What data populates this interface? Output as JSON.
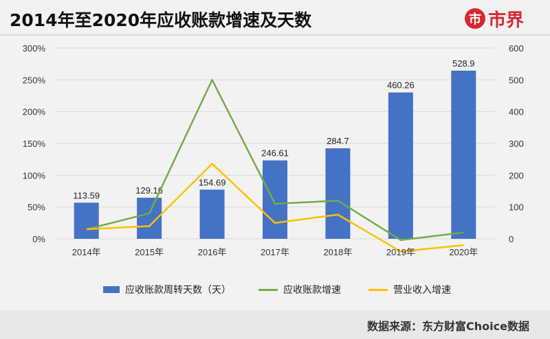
{
  "title": "2014年至2020年应收账款增速及天数",
  "logo": {
    "text": "市界",
    "mark": "市"
  },
  "source": "数据来源：东方财富Choice数据",
  "colors": {
    "bar": "#4472c4",
    "receivable_growth": "#70ad47",
    "revenue_growth": "#ffc000",
    "brand": "#d7282f"
  },
  "chart_data": {
    "type": "bar",
    "categories": [
      "2014年",
      "2015年",
      "2016年",
      "2017年",
      "2018年",
      "2019年",
      "2020年"
    ],
    "series": [
      {
        "name": "应收账款周转天数（天）",
        "type": "bar",
        "axis": "right",
        "values": [
          113.59,
          129.16,
          154.69,
          246.61,
          284.7,
          460.26,
          528.9
        ]
      },
      {
        "name": "应收账款增速",
        "type": "line",
        "axis": "left",
        "values": [
          0.15,
          0.4,
          2.5,
          0.55,
          0.6,
          -0.02,
          0.1
        ]
      },
      {
        "name": "营业收入增速",
        "type": "line",
        "axis": "left",
        "values": [
          0.15,
          0.2,
          1.18,
          0.25,
          0.38,
          -0.2,
          -0.1
        ]
      }
    ],
    "left_axis": {
      "ticks": [
        "300%",
        "250%",
        "200%",
        "150%",
        "100%",
        "50%",
        "0%"
      ],
      "range": [
        0,
        3
      ]
    },
    "right_axis": {
      "ticks": [
        "600",
        "500",
        "400",
        "300",
        "200",
        "100",
        "0"
      ],
      "range": [
        0,
        600
      ]
    },
    "grid": true,
    "legend_position": "bottom"
  }
}
